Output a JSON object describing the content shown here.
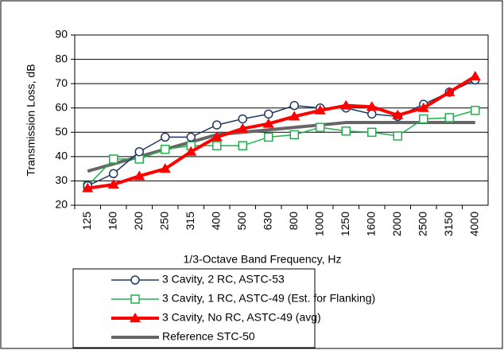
{
  "chart_data": {
    "type": "line",
    "y_label": "Transmission Loss, dB",
    "x_label": "1/3-Octave Band Frequency, Hz",
    "categories": [
      "125",
      "160",
      "200",
      "250",
      "315",
      "400",
      "500",
      "630",
      "800",
      "1000",
      "1250",
      "1600",
      "2000",
      "2500",
      "3150",
      "4000"
    ],
    "ylim": [
      20,
      90
    ],
    "yticks": [
      20,
      30,
      40,
      50,
      60,
      70,
      80,
      90
    ],
    "grid": true,
    "series": [
      {
        "name": "3 Cavity, 2 RC, ASTC-53",
        "color": "#1f3864",
        "marker": "circle",
        "width": 1.5,
        "values": [
          28,
          33,
          42,
          48,
          48,
          53,
          55.5,
          57.5,
          61,
          60,
          60,
          57.5,
          56.5,
          61.5,
          66.5,
          71.5
        ]
      },
      {
        "name": "3 Cavity, 1 RC, ASTC-49 (Est. for Flanking)",
        "color": "#22b04c",
        "marker": "square",
        "width": 1.5,
        "values": [
          28,
          39,
          39,
          43,
          44.5,
          44.5,
          44.5,
          48,
          49,
          52,
          50.5,
          50,
          48.5,
          55.5,
          56,
          59
        ]
      },
      {
        "name": "3 Cavity, No RC, ASTC-49 (avg)",
        "color": "#ff0000",
        "marker": "triangle",
        "width": 4,
        "values": [
          27,
          28.5,
          32,
          35,
          42,
          48,
          51.5,
          53.5,
          56.5,
          59,
          61,
          60.5,
          57,
          60,
          66.5,
          73
        ]
      },
      {
        "name": "Reference STC-50",
        "color": "#666666",
        "marker": "none",
        "width": 4,
        "values": [
          34,
          37,
          40,
          43,
          46,
          49,
          50,
          51,
          52,
          53,
          54,
          54,
          54,
          54,
          54,
          54
        ]
      }
    ]
  }
}
